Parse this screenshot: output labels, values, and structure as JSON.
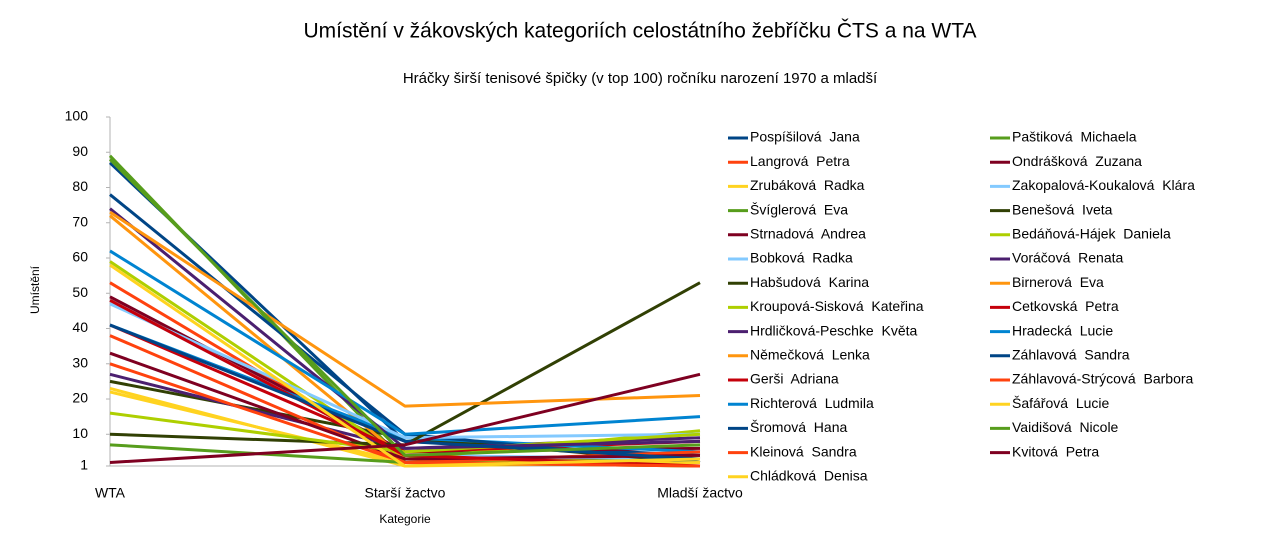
{
  "chart_data": {
    "type": "line",
    "title": "Umístění v žákovských kategoriích celostátního žebříčku ČTS a na WTA",
    "subtitle": "Hráčky širší tenisové špičky (v top 100) ročníku narození 1970 a mladší",
    "y_label": "Umístění",
    "x_label": "Kategorie",
    "categories": [
      "WTA",
      "Starší žactvo",
      "Mladší žactvo"
    ],
    "ylim": [
      1,
      100
    ],
    "yticks": [
      1,
      10,
      20,
      30,
      40,
      50,
      60,
      70,
      80,
      90,
      100
    ],
    "grid": false,
    "legend": "right",
    "series": [
      {
        "name": "Pospíšilová  Jana",
        "color": "#004586",
        "values": [
          87,
          8,
          4
        ]
      },
      {
        "name": "Langrová  Petra",
        "color": "#ff420e",
        "values": [
          53,
          3,
          2
        ]
      },
      {
        "name": "Zrubáková  Radka",
        "color": "#ffd320",
        "values": [
          22,
          2,
          1
        ]
      },
      {
        "name": "Švíglerová  Eva",
        "color": "#579d1c",
        "values": [
          89,
          2,
          3
        ]
      },
      {
        "name": "Strnadová  Andrea",
        "color": "#7e0021",
        "values": [
          49,
          5,
          6
        ]
      },
      {
        "name": "Bobková  Radka",
        "color": "#83caff",
        "values": [
          48,
          4,
          3
        ]
      },
      {
        "name": "Habšudová  Karina",
        "color": "#314004",
        "values": [
          25,
          9,
          2
        ]
      },
      {
        "name": "Kroupová-Sisková  Kateřina",
        "color": "#aecf00",
        "values": [
          59,
          3,
          11
        ]
      },
      {
        "name": "Hrdličková-Peschke  Květa",
        "color": "#4b1f6f",
        "values": [
          27,
          6,
          9
        ]
      },
      {
        "name": "Němečková  Lenka",
        "color": "#ff950e",
        "values": [
          72,
          3,
          2
        ]
      },
      {
        "name": "Gerši  Adriana",
        "color": "#c5000b",
        "values": [
          41,
          5,
          8
        ]
      },
      {
        "name": "Richterová  Ludmila",
        "color": "#0084d1",
        "values": [
          41,
          9,
          5
        ]
      },
      {
        "name": "Šromová  Hana",
        "color": "#004586",
        "values": [
          78,
          10,
          2
        ]
      },
      {
        "name": "Kleinová  Sandra",
        "color": "#ff420e",
        "values": [
          38,
          2,
          5
        ]
      },
      {
        "name": "Chládková  Denisa",
        "color": "#ffd320",
        "values": [
          23,
          1,
          2
        ]
      },
      {
        "name": "Paštiková  Michaela",
        "color": "#579d1c",
        "values": [
          7,
          2,
          1
        ]
      },
      {
        "name": "Ondrášková  Zuzana",
        "color": "#7e0021",
        "values": [
          33,
          3,
          4
        ]
      },
      {
        "name": "Zakopalová-Koukalová  Klára",
        "color": "#83caff",
        "values": [
          47,
          9,
          10
        ]
      },
      {
        "name": "Benešová  Iveta",
        "color": "#314004",
        "values": [
          10,
          7,
          53
        ]
      },
      {
        "name": "Bedáňová-Hájek  Daniela",
        "color": "#aecf00",
        "values": [
          16,
          5,
          10
        ]
      },
      {
        "name": "Voráčová  Renata",
        "color": "#4b1f6f",
        "values": [
          74,
          6,
          8
        ]
      },
      {
        "name": "Birnerová  Eva",
        "color": "#ff950e",
        "values": [
          73,
          18,
          21
        ]
      },
      {
        "name": "Cetkovská  Petra",
        "color": "#c5000b",
        "values": [
          48,
          4,
          1
        ]
      },
      {
        "name": "Hradecká  Lucie",
        "color": "#0084d1",
        "values": [
          62,
          10,
          15
        ]
      },
      {
        "name": "Záhlavová  Sandra",
        "color": "#004586",
        "values": [
          41,
          8,
          3
        ]
      },
      {
        "name": "Záhlavová-Strýcová  Barbora",
        "color": "#ff420e",
        "values": [
          30,
          2,
          1
        ]
      },
      {
        "name": "Šafářová  Lucie",
        "color": "#ffd320",
        "values": [
          58,
          1,
          3
        ]
      },
      {
        "name": "Vaidišová  Nicole",
        "color": "#579d1c",
        "values": [
          88,
          4,
          7
        ]
      },
      {
        "name": "Kvitová  Petra",
        "color": "#7e0021",
        "values": [
          2,
          7,
          27
        ]
      }
    ]
  }
}
